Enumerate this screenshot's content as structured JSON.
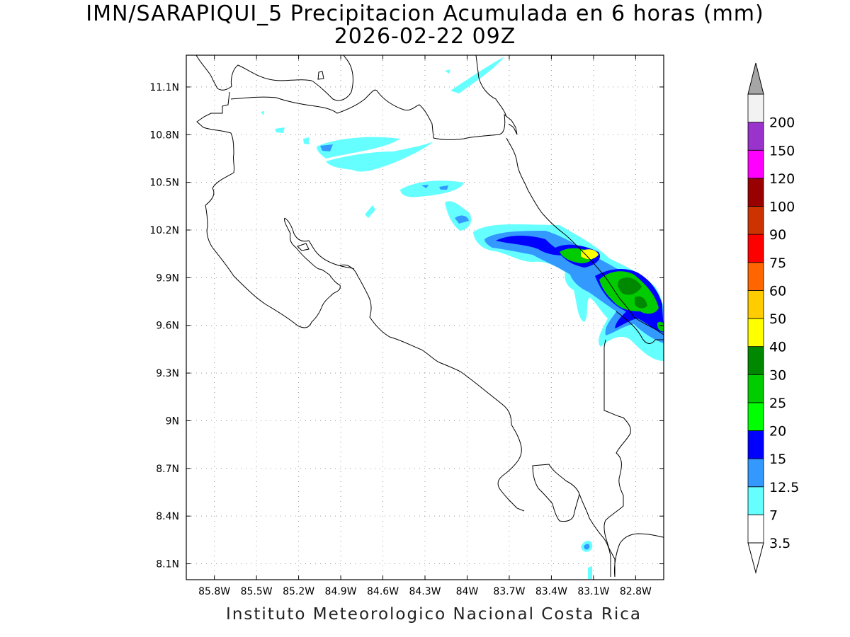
{
  "header": {
    "title": "IMN/SARAPIQUI_5 Precipitacion Acumulada en 6 horas (mm)",
    "datetime": "2026-02-22 09Z"
  },
  "footer": {
    "credit": "Instituto Meteorologico Nacional Costa Rica"
  },
  "map": {
    "lon_range": [
      -86.0,
      -82.6
    ],
    "lat_range": [
      8.0,
      11.3
    ],
    "lon_ticks": [
      "85.8W",
      "85.5W",
      "85.2W",
      "84.9W",
      "84.6W",
      "84.3W",
      "84W",
      "83.7W",
      "83.4W",
      "83.1W",
      "82.8W"
    ],
    "lat_ticks": [
      "11.1N",
      "10.8N",
      "10.5N",
      "10.2N",
      "9.9N",
      "9.6N",
      "9.3N",
      "9N",
      "8.7N",
      "8.4N",
      "8.1N"
    ],
    "grid": "dotted"
  },
  "colorbar": {
    "labels": [
      "3.5",
      "7",
      "12.5",
      "15",
      "20",
      "25",
      "30",
      "40",
      "50",
      "60",
      "75",
      "90",
      "100",
      "120",
      "150",
      "200"
    ],
    "colors": [
      "#ffffff",
      "#66ffff",
      "#3399ff",
      "#0000ff",
      "#00ff00",
      "#00cc00",
      "#008800",
      "#ffff00",
      "#ffcc00",
      "#ff6600",
      "#ff0000",
      "#cc3300",
      "#990000",
      "#ff00ff",
      "#9933cc",
      "#f2f2f2"
    ],
    "over_color": "#a6a6a6"
  }
}
